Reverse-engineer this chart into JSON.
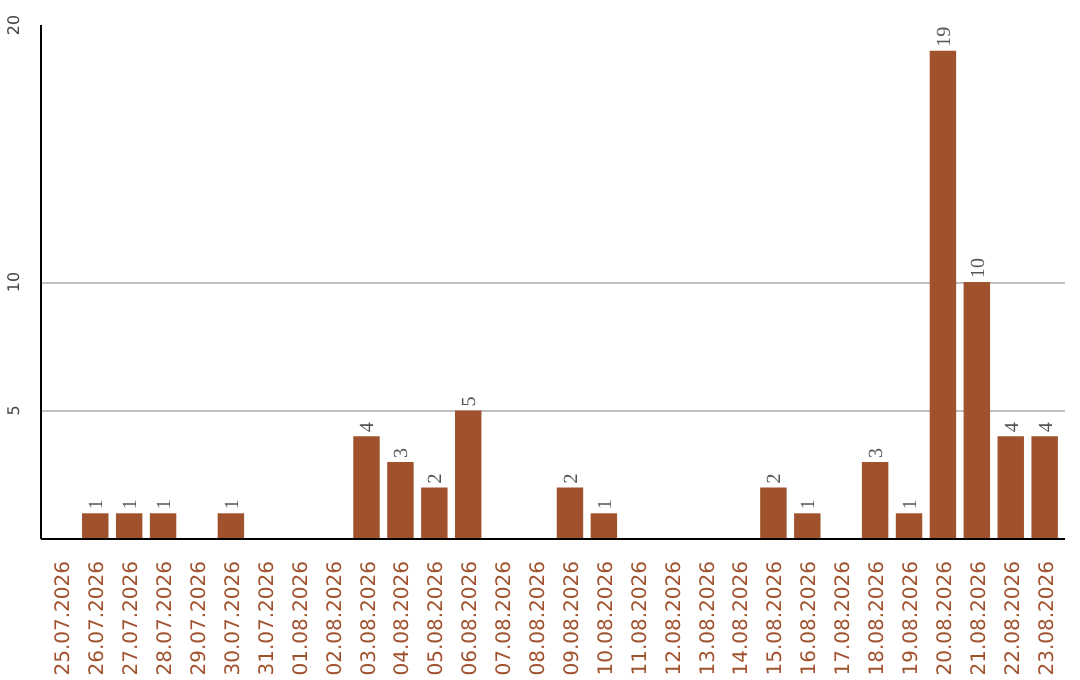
{
  "chart_data": {
    "type": "bar",
    "categories": [
      "25.07.2026",
      "26.07.2026",
      "27.07.2026",
      "28.07.2026",
      "29.07.2026",
      "30.07.2026",
      "31.07.2026",
      "01.08.2026",
      "02.08.2026",
      "03.08.2026",
      "04.08.2026",
      "05.08.2026",
      "06.08.2026",
      "07.08.2026",
      "08.08.2026",
      "09.08.2026",
      "10.08.2026",
      "11.08.2026",
      "12.08.2026",
      "13.08.2026",
      "14.08.2026",
      "15.08.2026",
      "16.08.2026",
      "17.08.2026",
      "18.08.2026",
      "19.08.2026",
      "20.08.2026",
      "21.08.2026",
      "22.08.2026",
      "23.08.2026"
    ],
    "values": [
      0,
      1,
      1,
      1,
      0,
      1,
      0,
      0,
      0,
      4,
      3,
      2,
      5,
      0,
      0,
      2,
      1,
      0,
      0,
      0,
      0,
      2,
      1,
      0,
      3,
      1,
      19,
      10,
      4,
      4
    ],
    "value_labels": [
      null,
      "1",
      "1",
      "1",
      null,
      "1",
      null,
      null,
      null,
      "4",
      "3",
      "2",
      "5",
      null,
      null,
      "2",
      "1",
      null,
      null,
      null,
      null,
      "2",
      "1",
      null,
      "3",
      "1",
      "19",
      "10",
      "4",
      "4"
    ],
    "color": "#a0522d",
    "ylim": [
      0,
      20
    ],
    "yticks": [
      5,
      10,
      20
    ],
    "grid": "y"
  }
}
